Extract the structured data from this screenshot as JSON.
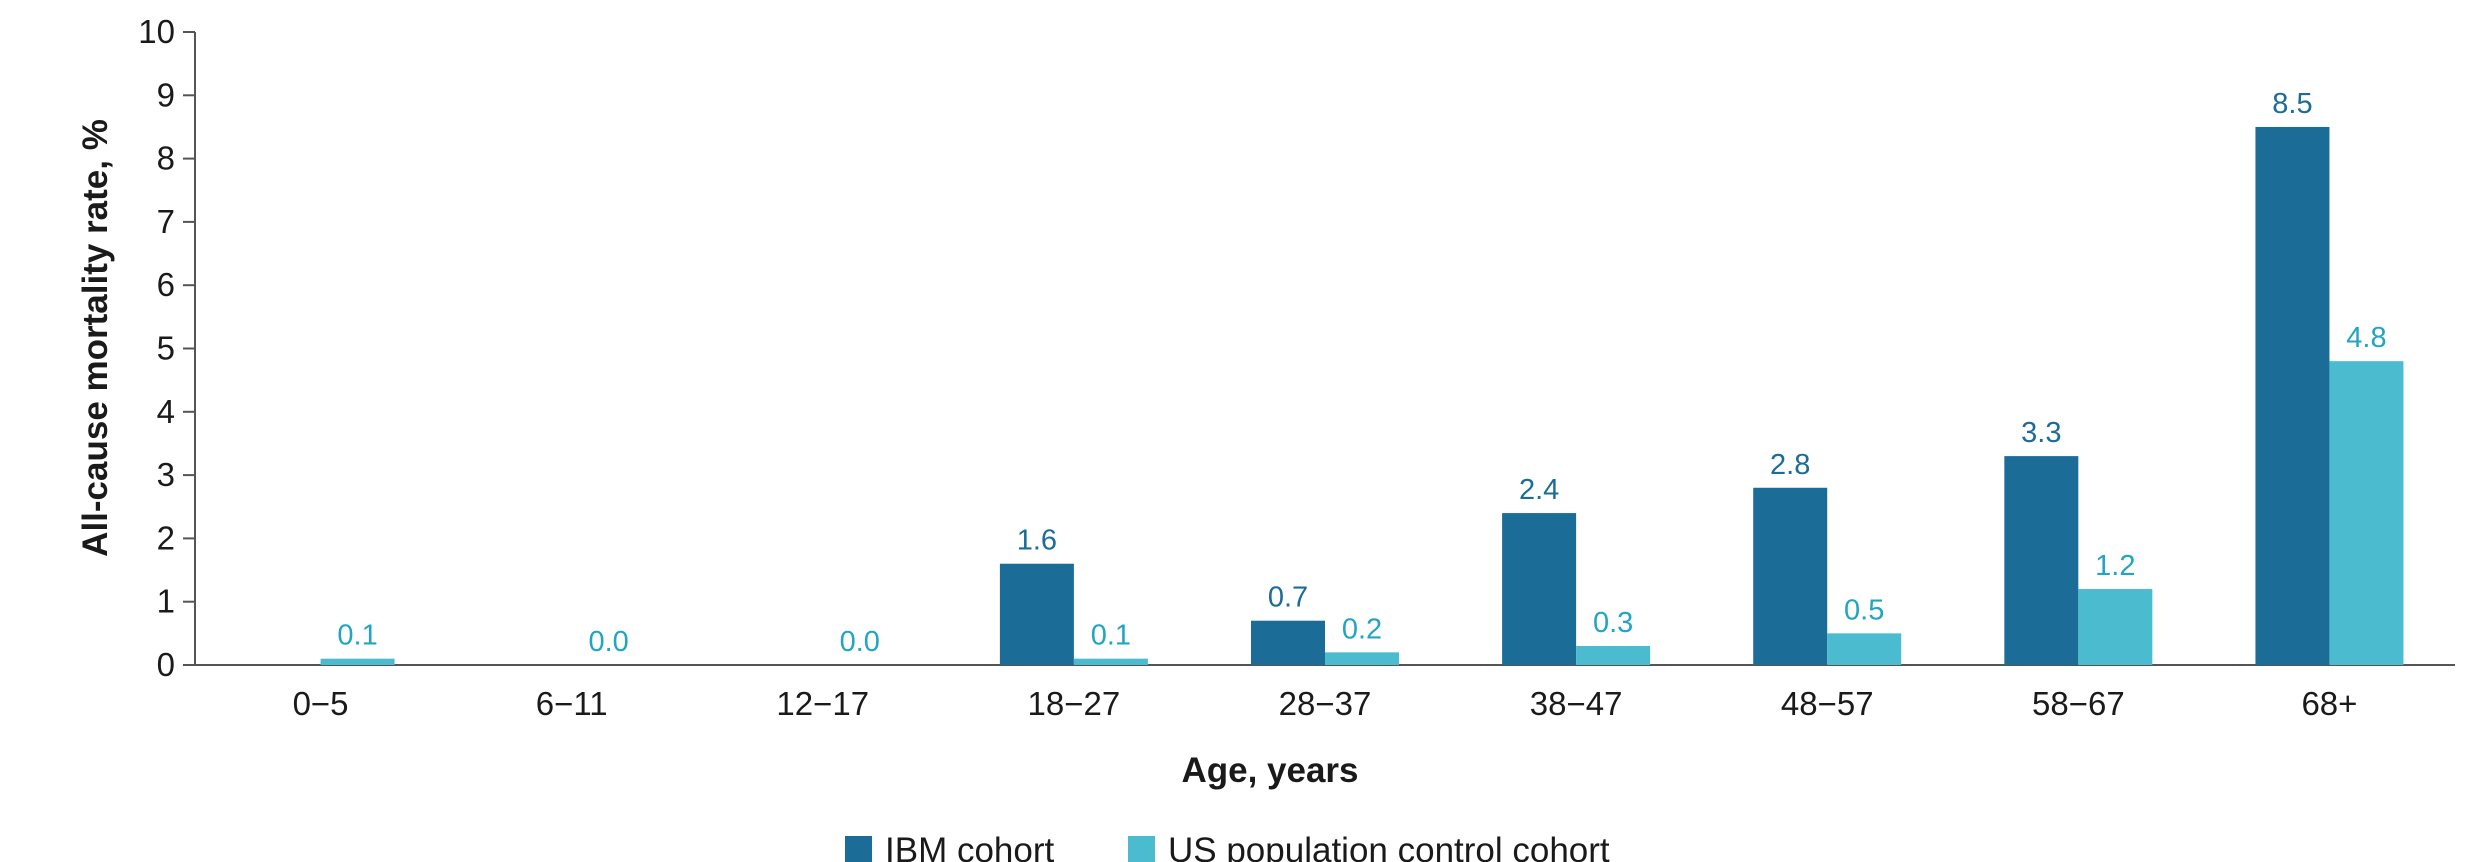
{
  "chart_data": {
    "type": "bar",
    "title": "",
    "xlabel": "Age, years",
    "ylabel": "All-cause mortality rate, %",
    "ylim": [
      0,
      10
    ],
    "yticks": [
      "0",
      "1",
      "2",
      "3",
      "4",
      "5",
      "6",
      "7",
      "8",
      "9",
      "10"
    ],
    "categories": [
      "0−5",
      "6−11",
      "12−17",
      "18−27",
      "28−37",
      "38−47",
      "48−57",
      "58−67",
      "68+"
    ],
    "series": [
      {
        "name": "IBM cohort",
        "color": "#1b6d97",
        "values": [
          null,
          null,
          null,
          1.6,
          0.7,
          2.4,
          2.8,
          3.3,
          8.5
        ],
        "labels": [
          "",
          "",
          "",
          "1.6",
          "0.7",
          "2.4",
          "2.8",
          "3.3",
          "8.5"
        ]
      },
      {
        "name": "US population control cohort",
        "color": "#4bbccf",
        "label_color": "#22a5c2",
        "values": [
          0.1,
          0.0,
          0.0,
          0.1,
          0.2,
          0.3,
          0.5,
          1.2,
          4.8
        ],
        "labels": [
          "0.1",
          "0.0",
          "0.0",
          "0.1",
          "0.2",
          "0.3",
          "0.5",
          "1.2",
          "4.8"
        ]
      }
    ],
    "grid": false,
    "legend_position": "bottom-center"
  }
}
